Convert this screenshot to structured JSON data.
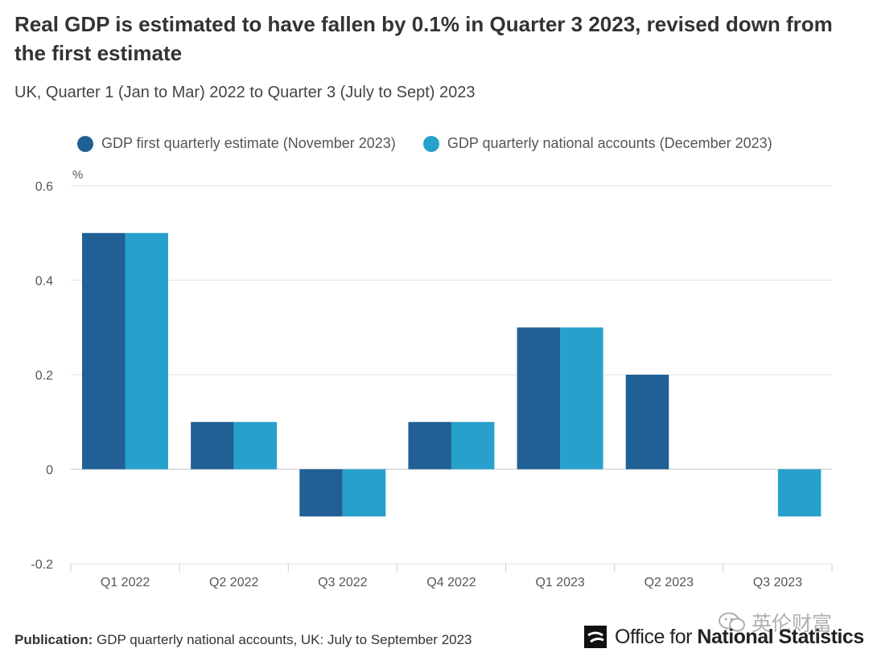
{
  "title": "Real GDP is estimated to have fallen by 0.1% in Quarter 3 2023, revised down from the first estimate",
  "subtitle": "UK, Quarter 1 (Jan to Mar) 2022 to Quarter 3 (July to Sept) 2023",
  "chart_data": {
    "type": "bar",
    "categories": [
      "Q1 2022",
      "Q2 2022",
      "Q3 2022",
      "Q4 2022",
      "Q1 2023",
      "Q2 2023",
      "Q3 2023"
    ],
    "series": [
      {
        "name": "GDP first quarterly estimate (November 2023)",
        "color": "#206095",
        "values": [
          0.5,
          0.1,
          -0.1,
          0.1,
          0.3,
          0.2,
          null
        ]
      },
      {
        "name": "GDP quarterly national accounts (December 2023)",
        "color": "#27a0cc",
        "values": [
          0.5,
          0.1,
          -0.1,
          0.1,
          0.3,
          null,
          -0.1
        ]
      }
    ],
    "ylabel": "%",
    "ylim": [
      -0.2,
      0.6
    ],
    "yticks": [
      -0.2,
      0,
      0.2,
      0.4,
      0.6
    ],
    "ytick_labels": [
      "-0.2",
      "0",
      "0.2",
      "0.4",
      "0.6"
    ],
    "grid": true,
    "legend_position": "top"
  },
  "footer": {
    "publication_label": "Publication:",
    "publication_text": "GDP quarterly national accounts, UK: July to September 2023"
  },
  "logo": {
    "text_regular": "Office for ",
    "text_bold": "National Statistics"
  },
  "watermark": {
    "text": "英伦财富",
    "icon": "wechat-icon"
  }
}
